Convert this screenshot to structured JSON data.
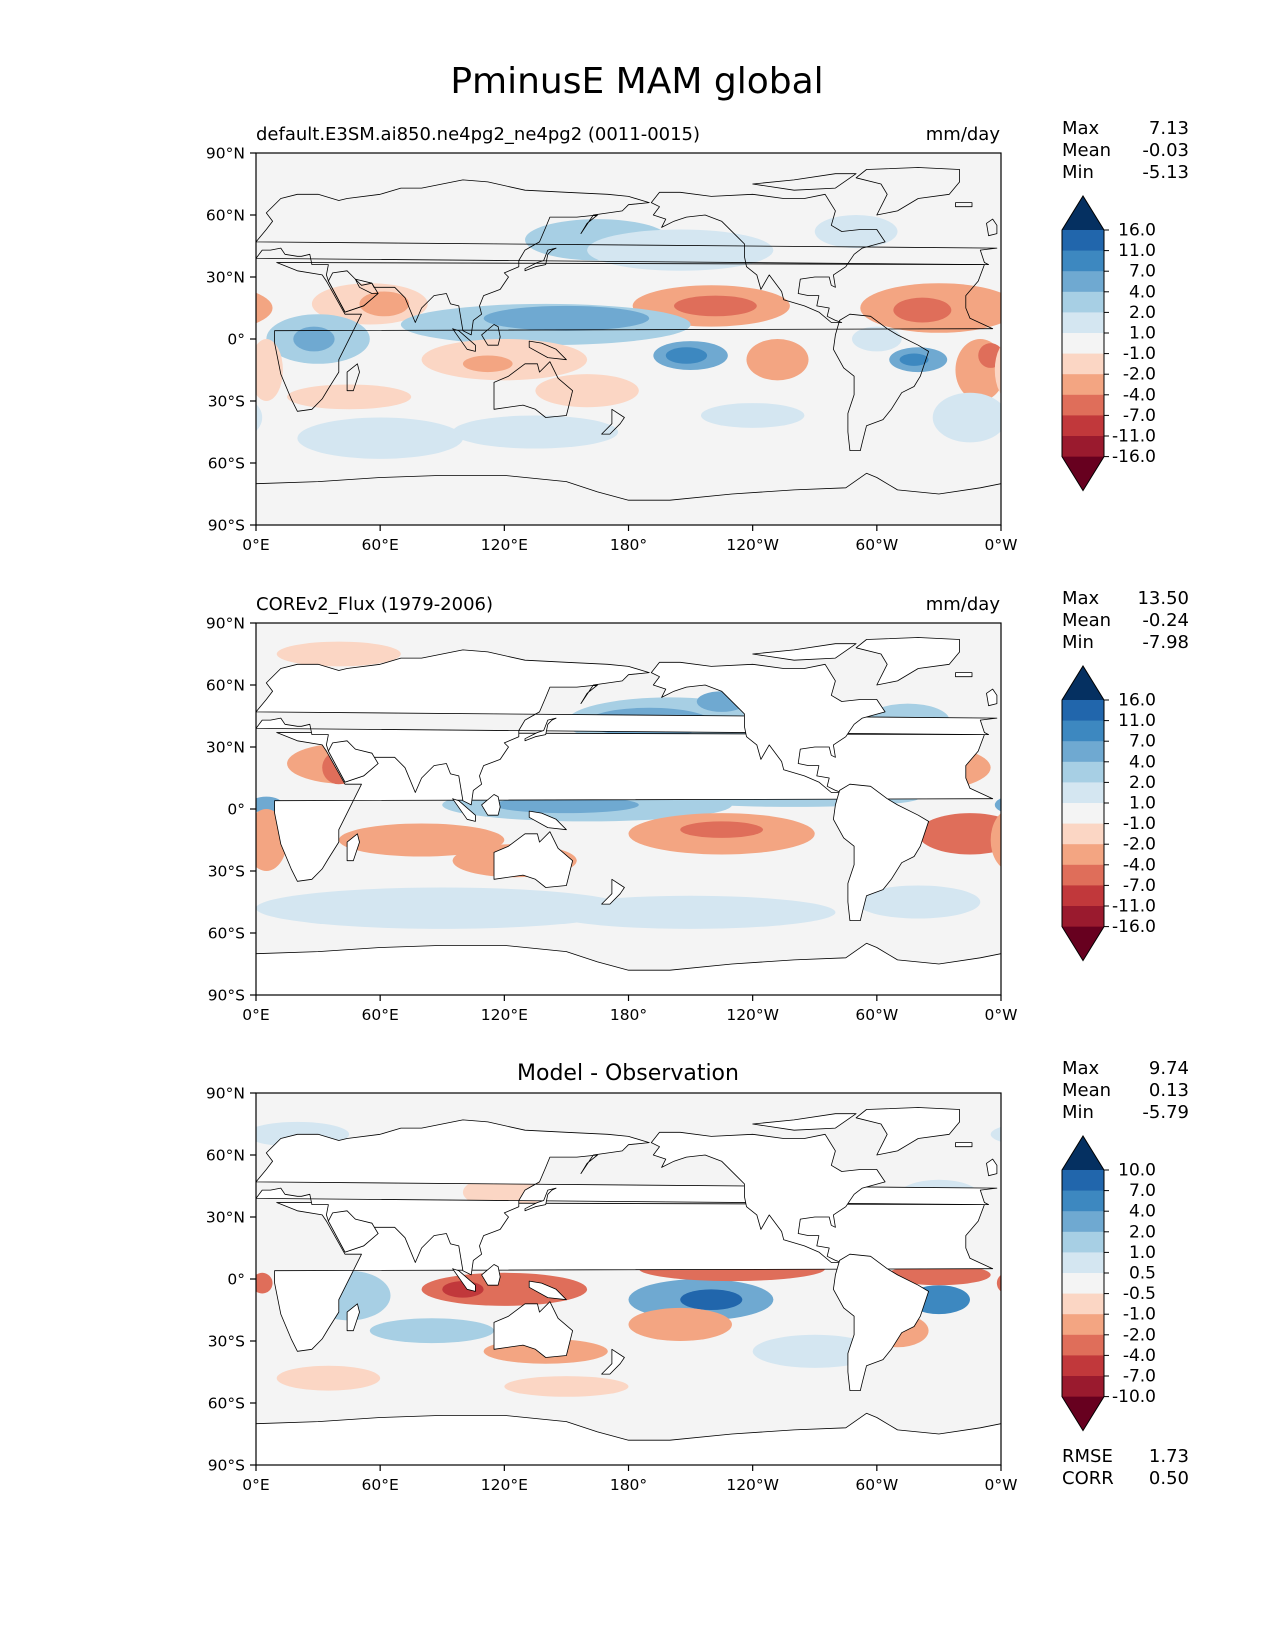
{
  "figure": {
    "title": "PminusE MAM global"
  },
  "colors": {
    "diverging_cmap": "RdBu_r",
    "land": "#ffffff",
    "coast": "#000000",
    "missing": "#f4f4f4"
  },
  "chart_data": [
    {
      "type": "heatmap",
      "subtype": "global lat-lon contourf map",
      "title": "default.E3SM.ai850.ne4pg2_ne4pg2 (0011-0015)",
      "units": "mm/day",
      "stats": {
        "max_label": "Max",
        "max": "7.13",
        "mean_label": "Mean",
        "mean": "-0.03",
        "min_label": "Min",
        "min": "-5.13"
      },
      "colorbar": {
        "extend": "both",
        "levels": [
          "16.0",
          "11.0",
          "7.0",
          "4.0",
          "2.0",
          "1.0",
          "-1.0",
          "-2.0",
          "-4.0",
          "-7.0",
          "-11.0",
          "-16.0"
        ],
        "colors": [
          "#053061",
          "#2166ac",
          "#3d88c0",
          "#6fa9d1",
          "#a7cfe4",
          "#d4e6f1",
          "#f4f4f4",
          "#fbd6c4",
          "#f3a582",
          "#df6e5a",
          "#c1383b",
          "#9a1a2e",
          "#67001f"
        ]
      },
      "xticks": [
        "0°E",
        "60°E",
        "120°E",
        "180°",
        "120°W",
        "60°W",
        "0°W"
      ],
      "yticks": [
        "90°N",
        "60°N",
        "30°N",
        "0°",
        "30°S",
        "60°S",
        "90°S"
      ],
      "xlim": [
        0,
        360
      ],
      "ylim": [
        -90,
        90
      ],
      "grid": false,
      "land_masked": false,
      "field_features": [
        {
          "lon": 165,
          "lat": 48,
          "rx": 35,
          "ry": 10,
          "level": 4
        },
        {
          "lon": 205,
          "lat": 43,
          "rx": 45,
          "ry": 10,
          "level": 5
        },
        {
          "lon": 290,
          "lat": 52,
          "rx": 20,
          "ry": 8,
          "level": 5
        },
        {
          "lon": 220,
          "lat": 16,
          "rx": 38,
          "ry": 10,
          "level": 8
        },
        {
          "lon": 222,
          "lat": 16,
          "rx": 20,
          "ry": 5,
          "level": 9
        },
        {
          "lon": 330,
          "lat": 15,
          "rx": 38,
          "ry": 12,
          "level": 8
        },
        {
          "lon": 322,
          "lat": 14,
          "rx": 14,
          "ry": 6,
          "level": 9
        },
        {
          "lon": 55,
          "lat": 17,
          "rx": 28,
          "ry": 10,
          "level": 7
        },
        {
          "lon": 62,
          "lat": 17,
          "rx": 12,
          "ry": 6,
          "level": 8
        },
        {
          "lon": 140,
          "lat": 7,
          "rx": 70,
          "ry": 10,
          "level": 4
        },
        {
          "lon": 150,
          "lat": 10,
          "rx": 40,
          "ry": 6,
          "level": 3
        },
        {
          "lon": 30,
          "lat": 0,
          "rx": 25,
          "ry": 12,
          "level": 4
        },
        {
          "lon": 28,
          "lat": 0,
          "rx": 10,
          "ry": 6,
          "level": 3
        },
        {
          "lon": 210,
          "lat": -8,
          "rx": 18,
          "ry": 7,
          "level": 3
        },
        {
          "lon": 208,
          "lat": -8,
          "rx": 10,
          "ry": 4,
          "level": 2
        },
        {
          "lon": 320,
          "lat": -10,
          "rx": 14,
          "ry": 6,
          "level": 3
        },
        {
          "lon": 318,
          "lat": -10,
          "rx": 7,
          "ry": 3,
          "level": 2
        },
        {
          "lon": 300,
          "lat": 0,
          "rx": 12,
          "ry": 6,
          "level": 5
        },
        {
          "lon": 120,
          "lat": -10,
          "rx": 40,
          "ry": 10,
          "level": 7
        },
        {
          "lon": 112,
          "lat": -12,
          "rx": 12,
          "ry": 4,
          "level": 8
        },
        {
          "lon": 252,
          "lat": -10,
          "rx": 15,
          "ry": 10,
          "level": 8
        },
        {
          "lon": 350,
          "lat": -15,
          "rx": 12,
          "ry": 15,
          "level": 8
        },
        {
          "lon": 355,
          "lat": -8,
          "rx": 6,
          "ry": 6,
          "level": 9
        },
        {
          "lon": 5,
          "lat": -15,
          "rx": 8,
          "ry": 15,
          "level": 7
        },
        {
          "lon": 45,
          "lat": -28,
          "rx": 30,
          "ry": 6,
          "level": 7
        },
        {
          "lon": 160,
          "lat": -25,
          "rx": 25,
          "ry": 8,
          "level": 7
        },
        {
          "lon": 60,
          "lat": -48,
          "rx": 40,
          "ry": 10,
          "level": 5
        },
        {
          "lon": 135,
          "lat": -45,
          "rx": 40,
          "ry": 8,
          "level": 5
        },
        {
          "lon": 240,
          "lat": -37,
          "rx": 25,
          "ry": 6,
          "level": 5
        },
        {
          "lon": 345,
          "lat": -38,
          "rx": 18,
          "ry": 12,
          "level": 5
        }
      ]
    },
    {
      "type": "heatmap",
      "subtype": "global lat-lon contourf map",
      "title": "COREv2_Flux (1979-2006)",
      "units": "mm/day",
      "stats": {
        "max_label": "Max",
        "max": "13.50",
        "mean_label": "Mean",
        "mean": "-0.24",
        "min_label": "Min",
        "min": "-7.98"
      },
      "colorbar": {
        "extend": "both",
        "levels": [
          "16.0",
          "11.0",
          "7.0",
          "4.0",
          "2.0",
          "1.0",
          "-1.0",
          "-2.0",
          "-4.0",
          "-7.0",
          "-11.0",
          "-16.0"
        ],
        "colors": [
          "#053061",
          "#2166ac",
          "#3d88c0",
          "#6fa9d1",
          "#a7cfe4",
          "#d4e6f1",
          "#f4f4f4",
          "#fbd6c4",
          "#f3a582",
          "#df6e5a",
          "#c1383b",
          "#9a1a2e",
          "#67001f"
        ]
      },
      "xticks": [
        "0°E",
        "60°E",
        "120°E",
        "180°",
        "120°W",
        "60°W",
        "0°W"
      ],
      "yticks": [
        "90°N",
        "60°N",
        "30°N",
        "0°",
        "30°S",
        "60°S",
        "90°S"
      ],
      "xlim": [
        0,
        360
      ],
      "ylim": [
        -90,
        90
      ],
      "grid": false,
      "land_masked": true,
      "field_features": [
        {
          "lon": 200,
          "lat": 42,
          "rx": 50,
          "ry": 12,
          "level": 4
        },
        {
          "lon": 190,
          "lat": 42,
          "rx": 30,
          "ry": 7,
          "level": 3
        },
        {
          "lon": 225,
          "lat": 52,
          "rx": 12,
          "ry": 5,
          "level": 3
        },
        {
          "lon": 315,
          "lat": 43,
          "rx": 20,
          "ry": 8,
          "level": 4
        },
        {
          "lon": 210,
          "lat": 18,
          "rx": 75,
          "ry": 10,
          "level": 8
        },
        {
          "lon": 185,
          "lat": 16,
          "rx": 40,
          "ry": 4,
          "level": 9
        },
        {
          "lon": 315,
          "lat": 20,
          "rx": 40,
          "ry": 12,
          "level": 8
        },
        {
          "lon": 325,
          "lat": 16,
          "rx": 15,
          "ry": 6,
          "level": 9
        },
        {
          "lon": 45,
          "lat": 22,
          "rx": 30,
          "ry": 10,
          "level": 8
        },
        {
          "lon": 40,
          "lat": 20,
          "rx": 8,
          "ry": 8,
          "level": 9
        },
        {
          "lon": 62,
          "lat": 15,
          "rx": 8,
          "ry": 5,
          "level": 9
        },
        {
          "lon": 160,
          "lat": 2,
          "rx": 70,
          "ry": 8,
          "level": 4
        },
        {
          "lon": 150,
          "lat": 2,
          "rx": 35,
          "ry": 4,
          "level": 3
        },
        {
          "lon": 260,
          "lat": 5,
          "rx": 60,
          "ry": 4,
          "level": 4
        },
        {
          "lon": 5,
          "lat": 2,
          "rx": 8,
          "ry": 4,
          "level": 3
        },
        {
          "lon": 225,
          "lat": -12,
          "rx": 45,
          "ry": 10,
          "level": 8
        },
        {
          "lon": 225,
          "lat": -10,
          "rx": 20,
          "ry": 4,
          "level": 9
        },
        {
          "lon": 345,
          "lat": -12,
          "rx": 25,
          "ry": 10,
          "level": 9
        },
        {
          "lon": 5,
          "lat": -15,
          "rx": 10,
          "ry": 15,
          "level": 8
        },
        {
          "lon": 80,
          "lat": -15,
          "rx": 40,
          "ry": 8,
          "level": 8
        },
        {
          "lon": 125,
          "lat": -25,
          "rx": 30,
          "ry": 8,
          "level": 8
        },
        {
          "lon": 90,
          "lat": -48,
          "rx": 90,
          "ry": 10,
          "level": 5
        },
        {
          "lon": 210,
          "lat": -50,
          "rx": 70,
          "ry": 8,
          "level": 5
        },
        {
          "lon": 320,
          "lat": -45,
          "rx": 30,
          "ry": 8,
          "level": 5
        },
        {
          "lon": 40,
          "lat": 75,
          "rx": 30,
          "ry": 6,
          "level": 7
        }
      ]
    },
    {
      "type": "heatmap",
      "subtype": "global lat-lon contourf map",
      "title": "Model - Observation",
      "units": "",
      "stats": {
        "max_label": "Max",
        "max": "9.74",
        "mean_label": "Mean",
        "mean": "0.13",
        "min_label": "Min",
        "min": "-5.79"
      },
      "extra_stats": {
        "rmse_label": "RMSE",
        "rmse": "1.73",
        "corr_label": "CORR",
        "corr": "0.50"
      },
      "colorbar": {
        "extend": "both",
        "levels": [
          "10.0",
          "7.0",
          "4.0",
          "2.0",
          "1.0",
          "0.5",
          "-0.5",
          "-1.0",
          "-2.0",
          "-4.0",
          "-7.0",
          "-10.0"
        ],
        "colors": [
          "#053061",
          "#2166ac",
          "#3d88c0",
          "#6fa9d1",
          "#a7cfe4",
          "#d4e6f1",
          "#f4f4f4",
          "#fbd6c4",
          "#f3a582",
          "#df6e5a",
          "#c1383b",
          "#9a1a2e",
          "#67001f"
        ]
      },
      "xticks": [
        "0°E",
        "60°E",
        "120°E",
        "180°",
        "120°W",
        "60°W",
        "0°W"
      ],
      "yticks": [
        "90°N",
        "60°N",
        "30°N",
        "0°",
        "30°S",
        "60°S",
        "90°S"
      ],
      "xlim": [
        0,
        360
      ],
      "ylim": [
        -90,
        90
      ],
      "grid": false,
      "land_masked": true,
      "field_features": [
        {
          "lon": 170,
          "lat": 15,
          "rx": 45,
          "ry": 10,
          "level": 3
        },
        {
          "lon": 150,
          "lat": 13,
          "rx": 20,
          "ry": 4,
          "level": 2
        },
        {
          "lon": 215,
          "lat": -10,
          "rx": 35,
          "ry": 10,
          "level": 3
        },
        {
          "lon": 220,
          "lat": -10,
          "rx": 15,
          "ry": 5,
          "level": 1
        },
        {
          "lon": 330,
          "lat": -10,
          "rx": 15,
          "ry": 7,
          "level": 2
        },
        {
          "lon": 45,
          "lat": -8,
          "rx": 20,
          "ry": 12,
          "level": 4
        },
        {
          "lon": 85,
          "lat": -25,
          "rx": 30,
          "ry": 6,
          "level": 4
        },
        {
          "lon": 270,
          "lat": -35,
          "rx": 30,
          "ry": 8,
          "level": 5
        },
        {
          "lon": 330,
          "lat": 40,
          "rx": 20,
          "ry": 8,
          "level": 5
        },
        {
          "lon": 20,
          "lat": 70,
          "rx": 25,
          "ry": 6,
          "level": 5
        },
        {
          "lon": 230,
          "lat": 5,
          "rx": 45,
          "ry": 6,
          "level": 9
        },
        {
          "lon": 230,
          "lat": 7,
          "rx": 20,
          "ry": 2,
          "level": 10
        },
        {
          "lon": 120,
          "lat": -5,
          "rx": 40,
          "ry": 8,
          "level": 9
        },
        {
          "lon": 100,
          "lat": -5,
          "rx": 10,
          "ry": 4,
          "level": 10
        },
        {
          "lon": 330,
          "lat": 2,
          "rx": 25,
          "ry": 5,
          "level": 9
        },
        {
          "lon": 3,
          "lat": -2,
          "rx": 5,
          "ry": 5,
          "level": 9
        },
        {
          "lon": 205,
          "lat": -22,
          "rx": 25,
          "ry": 8,
          "level": 8
        },
        {
          "lon": 310,
          "lat": -25,
          "rx": 15,
          "ry": 8,
          "level": 8
        },
        {
          "lon": 140,
          "lat": -35,
          "rx": 30,
          "ry": 6,
          "level": 8
        },
        {
          "lon": 35,
          "lat": -48,
          "rx": 25,
          "ry": 6,
          "level": 7
        },
        {
          "lon": 150,
          "lat": -52,
          "rx": 30,
          "ry": 5,
          "level": 7
        },
        {
          "lon": 120,
          "lat": 42,
          "rx": 20,
          "ry": 8,
          "level": 7
        }
      ]
    }
  ]
}
